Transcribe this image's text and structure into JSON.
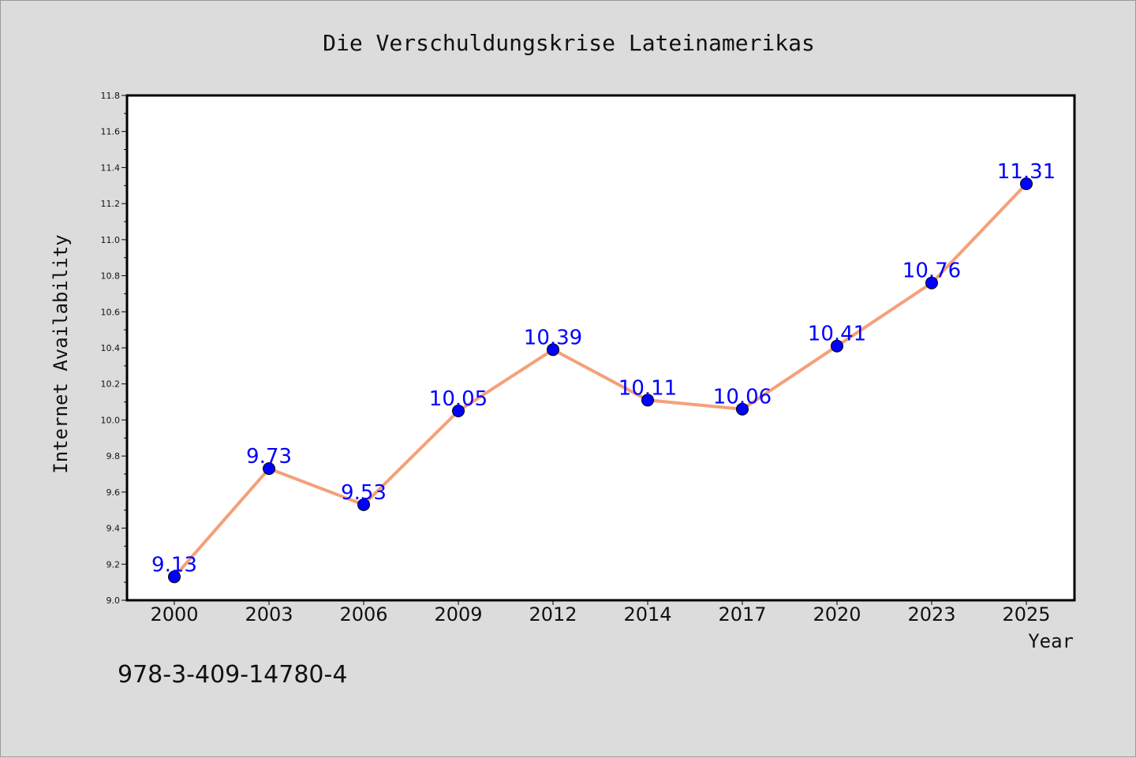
{
  "chart_data": {
    "type": "line",
    "title": "Die Verschuldungskrise Lateinamerikas",
    "xlabel": "Year",
    "ylabel": "Internet Availability",
    "categories": [
      "2000",
      "2003",
      "2006",
      "2009",
      "2012",
      "2014",
      "2017",
      "2020",
      "2023",
      "2025"
    ],
    "series": [
      {
        "values": [
          9.13,
          9.73,
          9.53,
          10.05,
          10.39,
          10.11,
          10.06,
          10.41,
          10.76,
          11.31
        ],
        "data_labels": [
          "9.13",
          "9.73",
          "9.53",
          "10.05",
          "10.39",
          "10.11",
          "10.06",
          "10.41",
          "10.76",
          "11.31"
        ]
      }
    ],
    "ylim": [
      9.0,
      11.8
    ],
    "yticks": [
      "9.0",
      "9.2",
      "9.4",
      "9.6",
      "9.8",
      "10.0",
      "10.2",
      "10.4",
      "10.6",
      "10.8",
      "11.0",
      "11.2",
      "11.4",
      "11.6",
      "11.8"
    ],
    "grid": false,
    "legend": "none",
    "colors": {
      "line": "#f4a07a",
      "marker": "#0000ff",
      "labels": "#0000ff",
      "background": "#dcdcdc",
      "plot_background": "#ffffff"
    }
  },
  "footer": {
    "isbn": "978-3-409-14780-4"
  }
}
